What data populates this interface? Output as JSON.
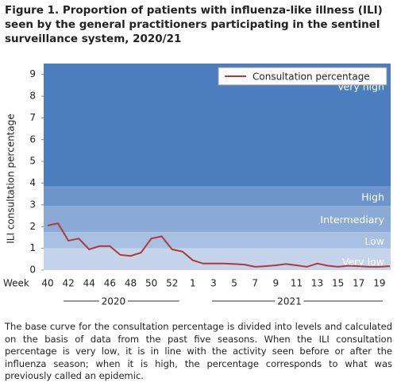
{
  "chart_data": {
    "type": "line",
    "title": "Figure 1. Proportion of patients with influenza-like illness (ILI) seen by the general practitioners participating in the sentinel surveillance system, 2020/21",
    "y_label": "ILI consultation percentage",
    "x_label": "Week",
    "categories": [
      "40",
      null,
      "42",
      null,
      "44",
      null,
      "46",
      null,
      "48",
      null,
      "50",
      null,
      "52",
      null,
      "1",
      null,
      "3",
      null,
      "5",
      null,
      "7",
      null,
      "9",
      null,
      "11",
      null,
      "13",
      null,
      "15",
      null,
      "17",
      null,
      "19",
      null
    ],
    "year_groups": [
      "2020",
      "2021"
    ],
    "series": [
      {
        "name": "Consultation percentage",
        "color": "#b03a3a",
        "values": [
          2.05,
          2.15,
          1.35,
          1.45,
          0.95,
          1.1,
          1.1,
          0.7,
          0.65,
          0.8,
          1.45,
          1.55,
          0.95,
          0.85,
          0.45,
          0.3,
          0.3,
          0.3,
          0.28,
          0.25,
          0.15,
          0.18,
          0.22,
          0.28,
          0.22,
          0.15,
          0.3,
          0.2,
          0.15,
          0.2,
          0.18,
          0.15,
          0.15,
          0.18
        ]
      }
    ],
    "bands": [
      {
        "name": "Very low",
        "from": 0,
        "to": 1,
        "color": "#c5d4ea"
      },
      {
        "name": "Low",
        "from": 1,
        "to": 1.75,
        "color": "#a8c0e1"
      },
      {
        "name": "Intermediary",
        "from": 1.75,
        "to": 2.95,
        "color": "#8caad6"
      },
      {
        "name": "High",
        "from": 2.95,
        "to": 3.85,
        "color": "#6d95cb"
      },
      {
        "name": "Very high",
        "from": 3.85,
        "to": 9.5,
        "color": "#4c7dbf"
      }
    ],
    "ylim": [
      0,
      9.5
    ],
    "yticks": [
      0,
      1,
      2,
      3,
      4,
      5,
      6,
      7,
      8,
      9
    ],
    "legend": "top-right",
    "note": "The base curve for the consultation percentage is divided into levels and calculated on the basis of data from the past five seasons. When the ILI consultation percentage is very low, it is in line with the activity seen before or after the influenza season; when it is high, the percentage corresponds to what was previously called an epidemic."
  }
}
